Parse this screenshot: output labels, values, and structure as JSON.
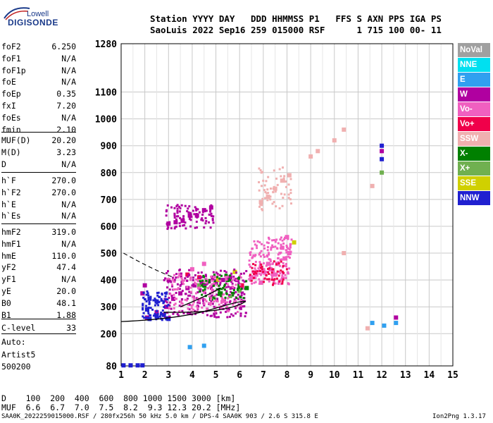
{
  "logo": {
    "line1": "Lowell",
    "line2": "DIGISONDE"
  },
  "header": {
    "line1": "Station YYYY DAY   DDD HHMMSS P1   FFS S AXN PPS IGA PS",
    "line2": "SaoLuis 2022 Sep16 259 015000 RSF      1 715 100 00- 11"
  },
  "params_group1": [
    {
      "key": "foF2",
      "value": "6.250"
    },
    {
      "key": "foF1",
      "value": "N/A"
    },
    {
      "key": "foF1p",
      "value": "N/A"
    },
    {
      "key": "foE",
      "value": "N/A"
    },
    {
      "key": "foEp",
      "value": "0.35"
    },
    {
      "key": "fxI",
      "value": "7.20"
    },
    {
      "key": "foEs",
      "value": "N/A"
    },
    {
      "key": "fmin",
      "value": "2.10"
    }
  ],
  "params_group2": [
    {
      "key": "MUF(D)",
      "value": "20.20"
    },
    {
      "key": "M(D)",
      "value": "3.23"
    },
    {
      "key": "D",
      "value": "N/A"
    }
  ],
  "params_group3": [
    {
      "key": "h`F",
      "value": "270.0"
    },
    {
      "key": "h`F2",
      "value": "270.0"
    },
    {
      "key": "h`E",
      "value": "N/A"
    },
    {
      "key": "h`Es",
      "value": "N/A"
    }
  ],
  "params_group4": [
    {
      "key": "hmF2",
      "value": "319.0"
    },
    {
      "key": "hmF1",
      "value": "N/A"
    },
    {
      "key": "hmE",
      "value": "110.0"
    },
    {
      "key": "yF2",
      "value": "47.4"
    },
    {
      "key": "yF1",
      "value": "N/A"
    },
    {
      "key": "yE",
      "value": "20.0"
    },
    {
      "key": "B0",
      "value": "48.1"
    },
    {
      "key": "B1",
      "value": "1.88"
    }
  ],
  "params_group5": [
    {
      "key": "C-level",
      "value": "33"
    }
  ],
  "autoscaler": {
    "line1": "Auto:",
    "line2": "Artist5",
    "line3": "500200"
  },
  "legend": [
    {
      "label": "NoVal",
      "color": "#a0a0a0"
    },
    {
      "label": "NNE",
      "color": "#00e0f0"
    },
    {
      "label": "E",
      "color": "#30a0f0"
    },
    {
      "label": "W",
      "color": "#b000a0"
    },
    {
      "label": "Vo-",
      "color": "#f060c0"
    },
    {
      "label": "Vo+",
      "color": "#f0004a"
    },
    {
      "label": "SSW",
      "color": "#f0b0b0"
    },
    {
      "label": "X-",
      "color": "#008000"
    },
    {
      "label": "X+",
      "color": "#70b050"
    },
    {
      "label": "SSE",
      "color": "#d0d000"
    },
    {
      "label": "NNW",
      "color": "#2020d0"
    }
  ],
  "bottom": {
    "d_row": "D    100  200  400  600  800 1000 1500 3000 [km]",
    "muf_row": "MUF  6.6  6.7  7.0  7.5  8.2  9.3 12.3 20.2 [MHz]",
    "footer_left": "SAA0K_2022259015000.RSF / 280fx256h 50 kHz 5.0 km / DPS-4 SAA0K 903 / 2.6 S 315.8 E",
    "footer_right": "Ion2Png 1.3.17"
  },
  "chart_data": {
    "type": "scatter",
    "title": "",
    "xlabel": "",
    "ylabel": "",
    "xlim": [
      1,
      15
    ],
    "ylim": [
      80,
      1280
    ],
    "x_ticks": [
      1,
      2,
      3,
      4,
      5,
      6,
      7,
      8,
      9,
      10,
      11,
      12,
      13,
      14,
      15
    ],
    "y_ticks": [
      80,
      200,
      300,
      400,
      500,
      600,
      700,
      800,
      900,
      1000,
      1100,
      1280
    ],
    "grid": true,
    "series": [
      {
        "name": "W",
        "color": "#b000a0",
        "points": [
          [
            2.1,
            260
          ],
          [
            2.5,
            280
          ],
          [
            2.9,
            300
          ],
          [
            3.2,
            330
          ],
          [
            3.5,
            350
          ],
          [
            3.8,
            370
          ],
          [
            4.1,
            380
          ],
          [
            4.4,
            390
          ],
          [
            4.7,
            395
          ],
          [
            5.0,
            395
          ],
          [
            5.3,
            400
          ],
          [
            5.6,
            410
          ],
          [
            5.9,
            400
          ],
          [
            3.0,
            610
          ],
          [
            3.3,
            615
          ],
          [
            3.6,
            620
          ],
          [
            3.9,
            640
          ],
          [
            4.2,
            640
          ],
          [
            4.5,
            660
          ],
          [
            4.8,
            670
          ],
          [
            2.0,
            380
          ],
          [
            1.9,
            350
          ],
          [
            12.0,
            880
          ],
          [
            12.6,
            260
          ]
        ]
      },
      {
        "name": "Vo-",
        "color": "#f060c0",
        "points": [
          [
            6.7,
            420
          ],
          [
            7.0,
            430
          ],
          [
            7.3,
            440
          ],
          [
            7.6,
            460
          ],
          [
            7.9,
            480
          ],
          [
            8.1,
            500
          ],
          [
            6.5,
            410
          ],
          [
            7.2,
            460
          ],
          [
            7.8,
            520
          ],
          [
            8.0,
            560
          ],
          [
            7.5,
            420
          ],
          [
            6.9,
            390
          ],
          [
            3.0,
            400
          ],
          [
            3.5,
            420
          ],
          [
            4.0,
            440
          ],
          [
            4.5,
            460
          ]
        ]
      },
      {
        "name": "SSW",
        "color": "#f0b0b0",
        "points": [
          [
            6.9,
            690
          ],
          [
            7.2,
            710
          ],
          [
            7.5,
            740
          ],
          [
            7.8,
            770
          ],
          [
            8.1,
            790
          ],
          [
            9.0,
            860
          ],
          [
            9.3,
            880
          ],
          [
            10.0,
            920
          ],
          [
            10.4,
            960
          ],
          [
            11.6,
            750
          ],
          [
            11.4,
            220
          ],
          [
            10.4,
            500
          ]
        ]
      },
      {
        "name": "X-",
        "color": "#008000",
        "points": [
          [
            4.5,
            380
          ],
          [
            5.0,
            390
          ],
          [
            5.5,
            400
          ],
          [
            6.0,
            380
          ],
          [
            6.3,
            370
          ],
          [
            4.8,
            330
          ],
          [
            5.2,
            350
          ]
        ]
      },
      {
        "name": "X+",
        "color": "#70b050",
        "points": [
          [
            5.6,
            340
          ],
          [
            6.0,
            360
          ],
          [
            4.3,
            380
          ],
          [
            12.0,
            800
          ]
        ]
      },
      {
        "name": "SSE",
        "color": "#d0d000",
        "points": [
          [
            5.8,
            430
          ],
          [
            8.3,
            540
          ],
          [
            5.1,
            400
          ]
        ]
      },
      {
        "name": "NNW",
        "color": "#2020d0",
        "points": [
          [
            1.1,
            82
          ],
          [
            1.4,
            82
          ],
          [
            1.7,
            82
          ],
          [
            1.9,
            82
          ],
          [
            2.2,
            255
          ],
          [
            2.5,
            265
          ],
          [
            2.8,
            270
          ],
          [
            2.1,
            290
          ],
          [
            2.2,
            330
          ],
          [
            2.5,
            320
          ],
          [
            3.0,
            255
          ],
          [
            12.0,
            850
          ],
          [
            12.0,
            900
          ]
        ]
      },
      {
        "name": "E",
        "color": "#30a0f0",
        "points": [
          [
            12.1,
            230
          ],
          [
            11.6,
            240
          ],
          [
            3.9,
            150
          ],
          [
            4.5,
            155
          ],
          [
            12.6,
            240
          ]
        ]
      },
      {
        "name": "Vo+",
        "color": "#f0004a",
        "points": [
          [
            3.8,
            420
          ],
          [
            4.3,
            410
          ],
          [
            6.1,
            380
          ]
        ]
      }
    ]
  }
}
